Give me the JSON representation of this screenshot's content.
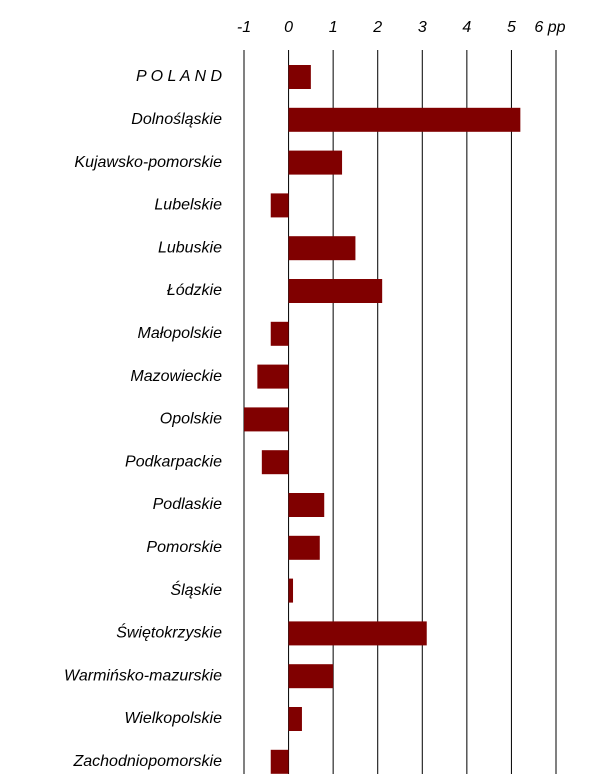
{
  "chart_data": {
    "type": "barh",
    "categories": [
      "P O L A N D",
      "Dolnośląskie",
      "Kujawsko-pomorskie",
      "Lubelskie",
      "Lubuskie",
      "Łódzkie",
      "Małopolskie",
      "Mazowieckie",
      "Opolskie",
      "Podkarpackie",
      "Podlaskie",
      "Pomorskie",
      "Śląskie",
      "Świętokrzyskie",
      "Warmińsko-mazurskie",
      "Wielkopolskie",
      "Zachodniopomorskie"
    ],
    "values": [
      0.5,
      5.2,
      1.2,
      -0.4,
      1.5,
      2.1,
      -0.4,
      -0.7,
      -1.0,
      -0.6,
      0.8,
      0.7,
      0.1,
      3.1,
      1.0,
      0.3,
      -0.4
    ],
    "color": "#800000",
    "xlim": [
      -1,
      6
    ],
    "xticks": [
      -1,
      0,
      1,
      2,
      3,
      4,
      5,
      {
        "value": 6,
        "label": "6 pp"
      }
    ],
    "grid": true
  }
}
